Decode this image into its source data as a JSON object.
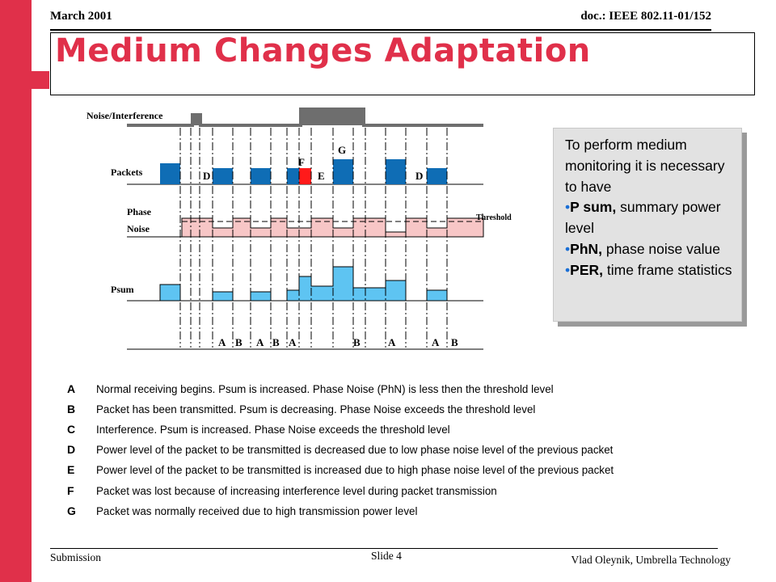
{
  "header": {
    "date": "March 2001",
    "doc": "doc.: IEEE 802.11-01/152"
  },
  "title": "Medium Changes Adaptation",
  "diagram": {
    "row_labels": {
      "noise": "Noise/Interference",
      "packets": "Packets",
      "phase_line1": "Phase",
      "phase_line2": "Noise",
      "threshold": "Threshold",
      "psum": "Psum"
    },
    "packet_letters": [
      "D",
      "F",
      "E",
      "G",
      "D"
    ],
    "bottom_letters": [
      "A",
      "B",
      "A",
      "B",
      "A",
      "B",
      "A",
      "A",
      "B"
    ],
    "colors": {
      "packet": "#0f6db5",
      "lost_packet": "#ff1a1a",
      "phase_fill": "#f7c6c6",
      "psum_fill": "#5ec4f2",
      "noise": "#6e6e6e"
    }
  },
  "info_box": {
    "intro": "To perform medium monitoring it is necessary to have",
    "bullets": [
      {
        "term": "P sum,",
        "desc": " summary power level"
      },
      {
        "term": "PhN,",
        "desc": " phase noise value"
      },
      {
        "term": "PER,",
        "desc": " time frame statistics"
      }
    ]
  },
  "legend": [
    {
      "key": "A",
      "text": "Normal receiving begins. Psum is increased. Phase Noise (PhN) is less then the threshold level"
    },
    {
      "key": "B",
      "text": "Packet has been transmitted. Psum is decreasing. Phase Noise exceeds the threshold level"
    },
    {
      "key": "C",
      "text": "Interference. Psum is increased. Phase Noise exceeds the threshold level"
    },
    {
      "key": "D",
      "text": "Power level of the packet to be transmitted is decreased due to low phase noise level of the previous packet"
    },
    {
      "key": "E",
      "text": "Power level of the packet to be transmitted is increased due to high phase noise level of the previous packet"
    },
    {
      "key": "F",
      "text": "Packet was lost because of increasing interference level during packet transmission"
    },
    {
      "key": "G",
      "text": "Packet was normally received due to high transmission power level"
    }
  ],
  "footer": {
    "left": "Submission",
    "center": "Slide 4",
    "right": "Vlad Oleynik, Umbrella Technology"
  }
}
